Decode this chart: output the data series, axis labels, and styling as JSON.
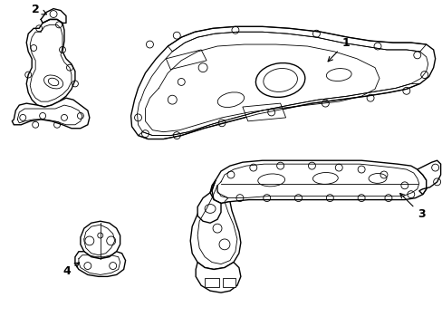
{
  "background_color": "#ffffff",
  "line_color": "#000000",
  "lw": 1.0,
  "tlw": 0.6,
  "fs": 9,
  "figsize": [
    4.89,
    3.6
  ],
  "dpi": 100
}
